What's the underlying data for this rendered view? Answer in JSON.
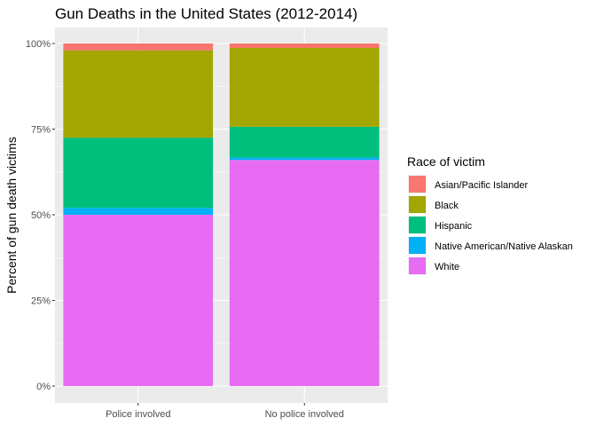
{
  "chart_data": {
    "type": "bar",
    "stacked": true,
    "title": "Gun Deaths in the United States (2012-2014)",
    "xlabel": "",
    "ylabel": "Percent of gun death victims",
    "ylim": [
      0,
      1
    ],
    "yticks": [
      "0%",
      "25%",
      "50%",
      "75%",
      "100%"
    ],
    "grid": true,
    "legend_position": "right",
    "legend_title": "Race of victim",
    "categories": [
      "Police involved",
      "No police involved"
    ],
    "series": [
      {
        "name": "Asian/Pacific Islander",
        "color": "#F8766D",
        "values": [
          0.02,
          0.013
        ]
      },
      {
        "name": "Black",
        "color": "#A3A500",
        "values": [
          0.255,
          0.23
        ]
      },
      {
        "name": "Hispanic",
        "color": "#00BF7D",
        "values": [
          0.205,
          0.09
        ]
      },
      {
        "name": "Native American/Native Alaskan",
        "color": "#00B0F6",
        "values": [
          0.02,
          0.007
        ]
      },
      {
        "name": "White",
        "color": "#E76BF3",
        "values": [
          0.5,
          0.66
        ]
      }
    ],
    "panel_background": "#EBEBEB",
    "gridline_color": "#FFFFFF"
  }
}
